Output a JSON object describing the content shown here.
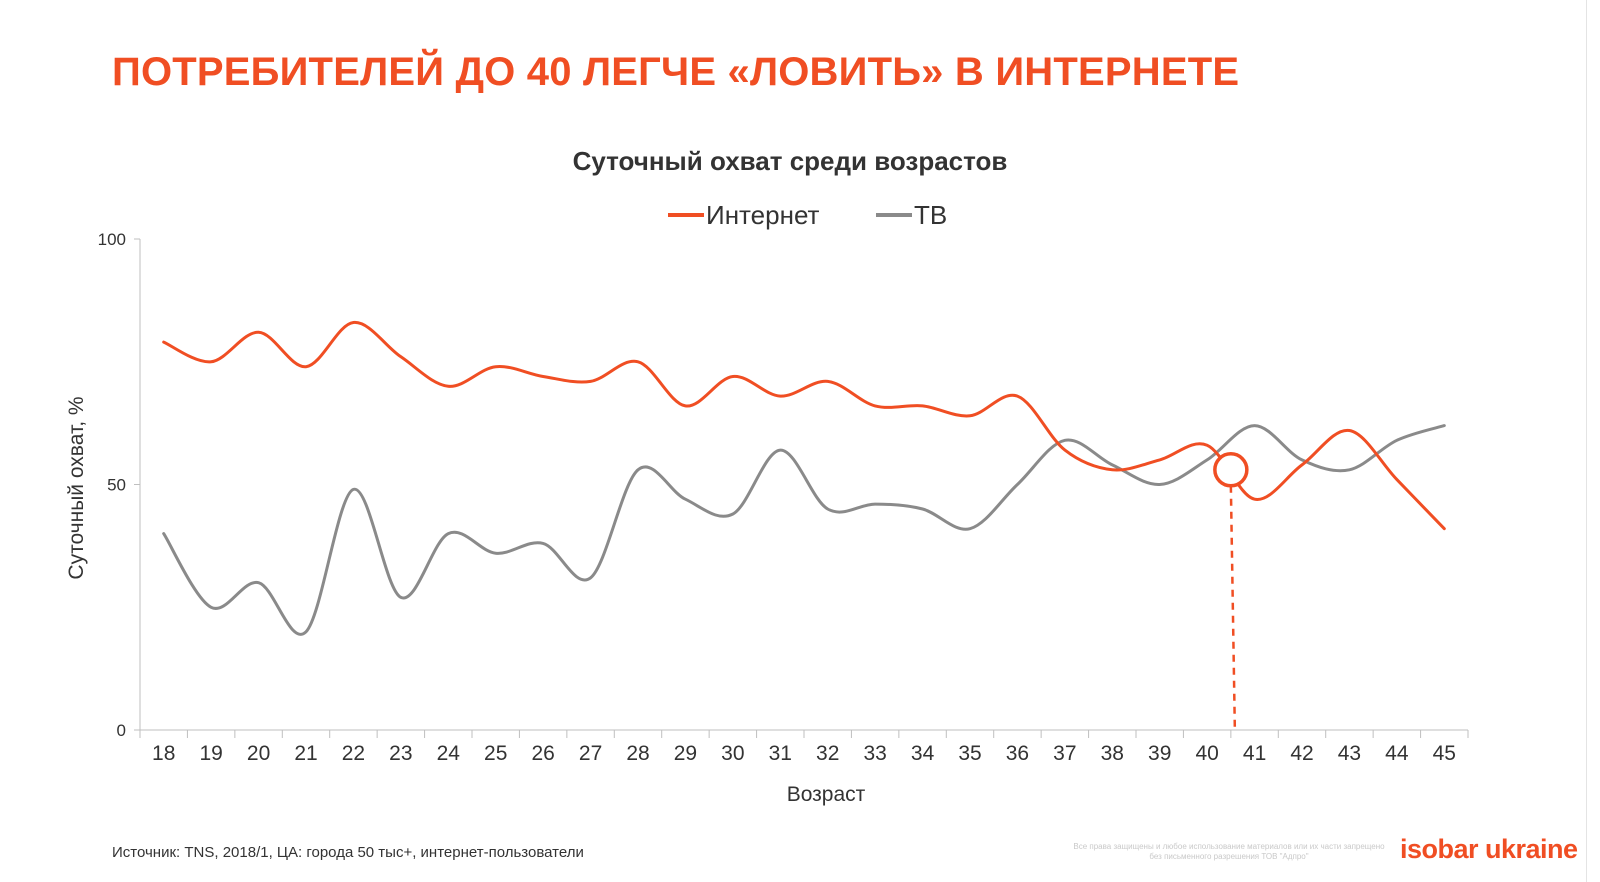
{
  "slide": {
    "title": "ПОТРЕБИТЕЛЕЙ ДО 40 ЛЕГЧЕ «ЛОВИТЬ» В ИНТЕРНЕТЕ",
    "source": "Источник: TNS, 2018/1, ЦА: города 50 тыс+, интернет-пользователи",
    "copyright": "Все права защищены и любое использование материалов или их части запрещено без письменного разрешения ТОВ \"Адпро\"",
    "logo": "isobar ukraine"
  },
  "colors": {
    "accent": "#f04e23",
    "tv": "#8a8a8a",
    "axis": "#bfbfbf",
    "text": "#333333"
  },
  "chart_data": {
    "type": "line",
    "title": "Суточный охват среди возрастов",
    "xlabel": "Возраст",
    "ylabel": "Суточный охват, %",
    "ylim": [
      0,
      100
    ],
    "yticks": [
      0,
      50,
      100
    ],
    "legend_position": "top-center",
    "grid": false,
    "categories": [
      "18",
      "19",
      "20",
      "21",
      "22",
      "23",
      "24",
      "25",
      "26",
      "27",
      "28",
      "29",
      "30",
      "31",
      "32",
      "33",
      "34",
      "35",
      "36",
      "37",
      "38",
      "39",
      "40",
      "41",
      "42",
      "43",
      "44",
      "45"
    ],
    "series": [
      {
        "name": "Интернет",
        "color": "#f04e23",
        "values": [
          79,
          75,
          81,
          74,
          83,
          76,
          70,
          74,
          72,
          71,
          75,
          66,
          72,
          68,
          71,
          66,
          66,
          64,
          68,
          57,
          53,
          55,
          58,
          47,
          54,
          61,
          51,
          41
        ]
      },
      {
        "name": "ТВ",
        "color": "#8a8a8a",
        "values": [
          40,
          25,
          30,
          20,
          49,
          27,
          40,
          36,
          38,
          31,
          53,
          47,
          44,
          57,
          45,
          46,
          45,
          41,
          50,
          59,
          54,
          50,
          55,
          62,
          55,
          53,
          59,
          62
        ]
      }
    ],
    "annotation": {
      "type": "crossover-marker",
      "x": 40.5,
      "y": 53,
      "note": "dashed drop line to the x axis"
    }
  }
}
